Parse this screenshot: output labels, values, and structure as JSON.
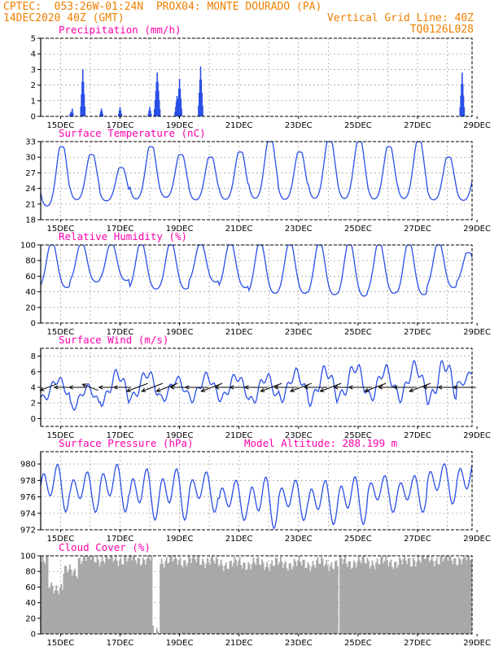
{
  "header": {
    "line1": "CPTEC:  053:26W-01:24N  PROX04: MONTE DOURADO (PA)",
    "line2_left": "14DEC2020 40Z (GMT)",
    "line2_right": "Vertical Grid Line: 40Z",
    "line3_right": "TQ0126L028",
    "color": "#f07f00"
  },
  "colors": {
    "title": "#ff00aa",
    "line": "#2a4fe6",
    "cloud": "#a8a8a8",
    "grid": "#9a9a9a"
  },
  "chart_data": [
    {
      "type": "bar",
      "title": "Precipitation (mm/h)",
      "yticks": [
        "0",
        "1",
        "2",
        "3",
        "4",
        "5"
      ],
      "ylim": [
        0,
        5
      ],
      "xticks": [
        "15DEC",
        "17DEC",
        "19DEC",
        "21DEC",
        "23DEC",
        "25DEC",
        "27DEC",
        "29DEC"
      ],
      "xlim_hours": [
        0,
        348
      ],
      "events": [
        {
          "hour": 24.5,
          "peak": 0.3,
          "width": 2
        },
        {
          "hour": 25.5,
          "peak": 0.5,
          "width": 1
        },
        {
          "hour": 34,
          "peak": 3.0,
          "width": 3
        },
        {
          "hour": 49,
          "peak": 0.5,
          "width": 2
        },
        {
          "hour": 64,
          "peak": 0.6,
          "width": 2
        },
        {
          "hour": 88,
          "peak": 0.6,
          "width": 2
        },
        {
          "hour": 94,
          "peak": 2.8,
          "width": 4
        },
        {
          "hour": 110,
          "peak": 1.3,
          "width": 3
        },
        {
          "hour": 112,
          "peak": 2.4,
          "width": 3
        },
        {
          "hour": 129,
          "peak": 3.2,
          "width": 3
        },
        {
          "hour": 340,
          "peak": 2.8,
          "width": 3
        }
      ]
    },
    {
      "type": "line",
      "title": "Surface Temperature (nC)",
      "yticks": [
        "18",
        "21",
        "24",
        "27",
        "30",
        "33"
      ],
      "ylim": [
        18,
        33
      ],
      "xticks": [
        "15DEC",
        "17DEC",
        "19DEC",
        "21DEC",
        "23DEC",
        "25DEC",
        "27DEC",
        "29DEC"
      ],
      "xlim_hours": [
        0,
        348
      ],
      "daily_max": [
        32,
        30.5,
        28,
        32,
        30.5,
        30,
        31,
        33.5,
        31,
        33.5,
        33,
        32,
        33,
        30,
        29
      ],
      "daily_min": [
        19.5,
        21,
        21,
        21,
        21.5,
        21,
        21,
        21,
        21,
        21,
        21,
        21,
        21,
        21,
        21
      ],
      "peak_hour_utc": 17,
      "min_hour_utc": 9
    },
    {
      "type": "line",
      "title": "Relative Humidity (%)",
      "yticks": [
        "0",
        "20",
        "40",
        "60",
        "80",
        "100"
      ],
      "ylim": [
        0,
        100
      ],
      "xticks": [
        "15DEC",
        "17DEC",
        "19DEC",
        "21DEC",
        "23DEC",
        "25DEC",
        "27DEC",
        "29DEC"
      ],
      "xlim_hours": [
        0,
        348
      ],
      "daily_max": [
        100,
        100,
        100,
        100,
        100,
        100,
        100,
        100,
        100,
        100,
        100,
        100,
        100,
        100,
        90
      ],
      "daily_min": [
        40,
        48,
        50,
        38,
        38,
        48,
        40,
        32,
        32,
        30,
        28,
        32,
        30,
        40,
        48
      ],
      "peak_hour_utc": 9,
      "min_hour_utc": 17
    },
    {
      "type": "line",
      "title": "Surface Wind (m/s)",
      "yticks": [
        "0",
        "2",
        "4",
        "6",
        "8"
      ],
      "ylim": [
        -1,
        9
      ],
      "xticks": [
        "15DEC",
        "17DEC",
        "19DEC",
        "21DEC",
        "23DEC",
        "25DEC",
        "27DEC",
        "29DEC"
      ],
      "xlim_hours": [
        0,
        348
      ],
      "daily_max": [
        5.5,
        4.5,
        6.5,
        6.5,
        5.5,
        6,
        6,
        6,
        6.5,
        7,
        7.5,
        7,
        7.5,
        8,
        6.5
      ],
      "daily_min": [
        2,
        1,
        1.5,
        2,
        2,
        2,
        2,
        1.5,
        2,
        1.5,
        2,
        2,
        2,
        1.5,
        4
      ],
      "arrows": [
        {
          "hour": 6,
          "speed": 3,
          "dir": "sw"
        },
        {
          "hour": 18,
          "speed": 3,
          "dir": "w"
        },
        {
          "hour": 30,
          "speed": 3,
          "dir": "w"
        },
        {
          "hour": 40,
          "speed": 3,
          "dir": "nw"
        },
        {
          "hour": 54,
          "speed": 3,
          "dir": "w"
        },
        {
          "hour": 66,
          "speed": 3,
          "dir": "w"
        },
        {
          "hour": 78,
          "speed": 4,
          "dir": "sw"
        },
        {
          "hour": 90,
          "speed": 4,
          "dir": "sw"
        },
        {
          "hour": 102,
          "speed": 4,
          "dir": "sw"
        },
        {
          "hour": 114,
          "speed": 4,
          "dir": "w"
        },
        {
          "hour": 126,
          "speed": 4,
          "dir": "w"
        },
        {
          "hour": 138,
          "speed": 4,
          "dir": "sw"
        },
        {
          "hour": 150,
          "speed": 4,
          "dir": "w"
        },
        {
          "hour": 162,
          "speed": 4,
          "dir": "w"
        },
        {
          "hour": 174,
          "speed": 4,
          "dir": "w"
        },
        {
          "hour": 186,
          "speed": 4,
          "dir": "sw"
        },
        {
          "hour": 198,
          "speed": 4,
          "dir": "w"
        },
        {
          "hour": 210,
          "speed": 4,
          "dir": "sw"
        },
        {
          "hour": 222,
          "speed": 4,
          "dir": "w"
        },
        {
          "hour": 234,
          "speed": 4,
          "dir": "sw"
        },
        {
          "hour": 246,
          "speed": 4,
          "dir": "w"
        },
        {
          "hour": 258,
          "speed": 4,
          "dir": "w"
        },
        {
          "hour": 270,
          "speed": 4,
          "dir": "sw"
        },
        {
          "hour": 282,
          "speed": 4,
          "dir": "w"
        },
        {
          "hour": 294,
          "speed": 4,
          "dir": "w"
        },
        {
          "hour": 306,
          "speed": 4,
          "dir": "sw"
        },
        {
          "hour": 318,
          "speed": 4,
          "dir": "w"
        },
        {
          "hour": 330,
          "speed": 4,
          "dir": "w"
        },
        {
          "hour": 342,
          "speed": 4,
          "dir": "w"
        }
      ]
    },
    {
      "type": "line",
      "title": "Surface Pressure (hPa)",
      "subtitle": "Model Altitude: 288.199 m",
      "yticks": [
        "972",
        "974",
        "976",
        "978",
        "980"
      ],
      "ylim": [
        972,
        981.5
      ],
      "xticks": [
        "15DEC",
        "17DEC",
        "19DEC",
        "21DEC",
        "23DEC",
        "25DEC",
        "27DEC",
        "29DEC"
      ],
      "xlim_hours": [
        0,
        348
      ],
      "daily_max": [
        980.5,
        979.5,
        980.5,
        980,
        980,
        979.5,
        978.5,
        979,
        978.5,
        978.5,
        979,
        979,
        979,
        980.5,
        981
      ],
      "daily_min": [
        974,
        974,
        974,
        973,
        973,
        974,
        973,
        972,
        973,
        972.5,
        972.5,
        974,
        974,
        975,
        975
      ]
    },
    {
      "type": "bar",
      "title": "Cloud Cover (%)",
      "yticks": [
        "0",
        "20",
        "40",
        "60",
        "80",
        "100"
      ],
      "ylim": [
        0,
        100
      ],
      "xticks": [
        "15DEC",
        "17DEC",
        "19DEC",
        "21DEC",
        "23DEC",
        "25DEC",
        "27DEC",
        "29DEC"
      ],
      "xlim_hours": [
        0,
        348
      ],
      "levels": [
        {
          "from": 0,
          "to": 6,
          "value": 92
        },
        {
          "from": 6,
          "to": 18,
          "value": 60
        },
        {
          "from": 18,
          "to": 30,
          "value": 80
        },
        {
          "from": 30,
          "to": 48,
          "value": 97
        },
        {
          "from": 48,
          "to": 90,
          "value": 96
        },
        {
          "from": 90,
          "to": 96,
          "value": 2
        },
        {
          "from": 96,
          "to": 140,
          "value": 94
        },
        {
          "from": 140,
          "to": 240,
          "value": 90
        },
        {
          "from": 240,
          "to": 300,
          "value": 92
        },
        {
          "from": 300,
          "to": 348,
          "value": 96
        }
      ]
    }
  ]
}
